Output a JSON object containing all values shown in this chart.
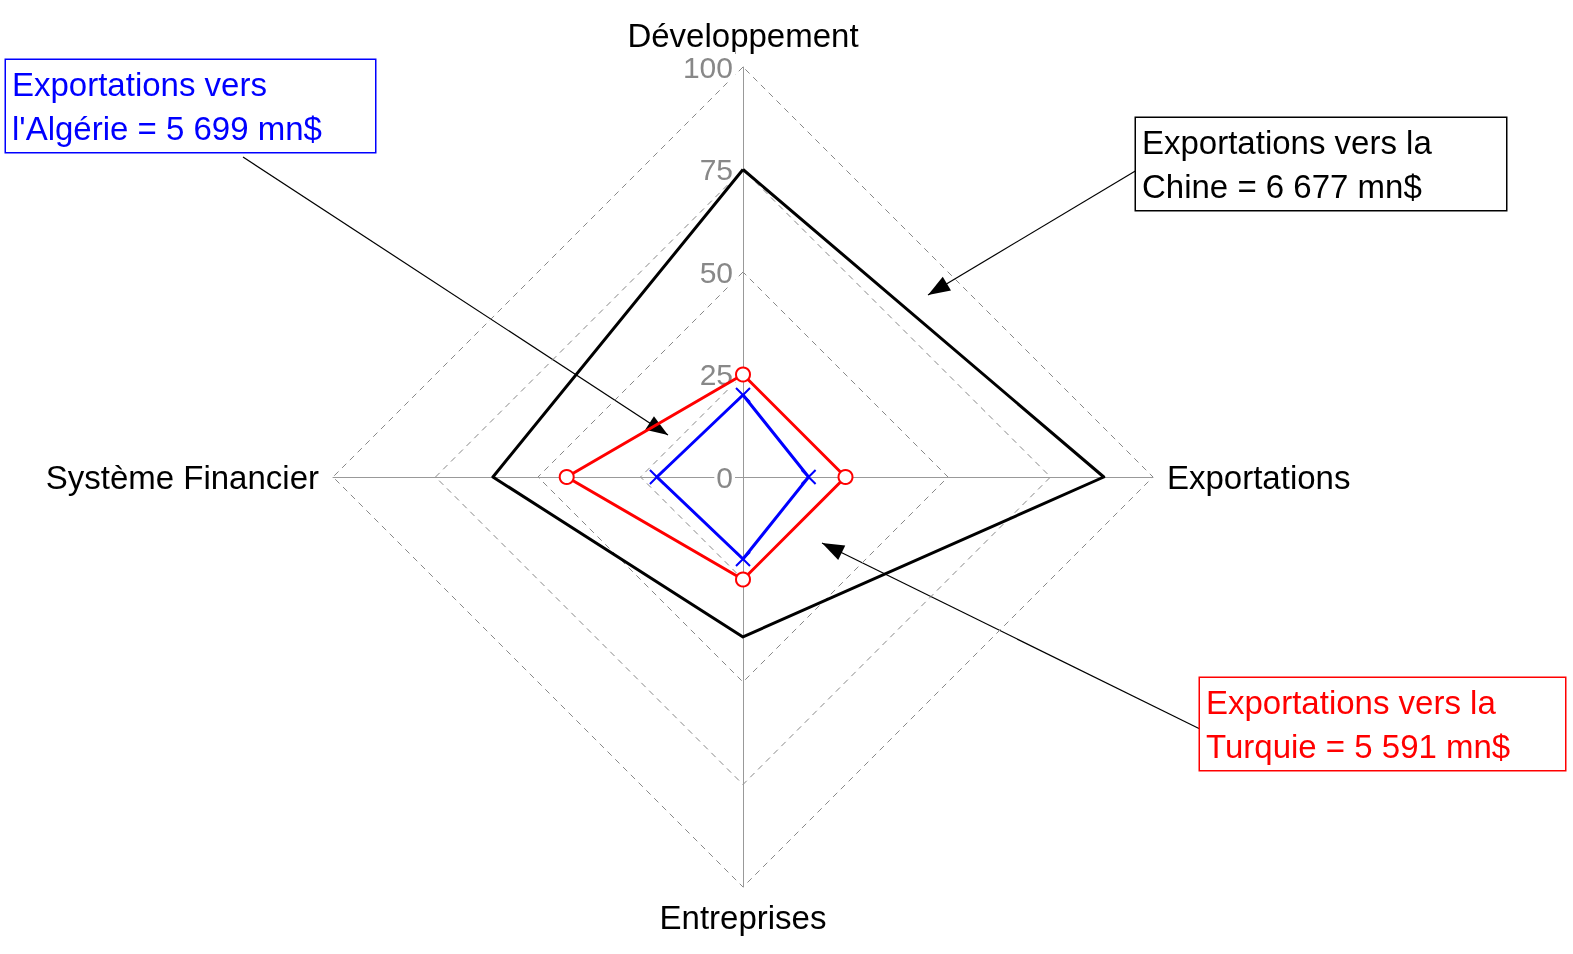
{
  "chart_data": {
    "type": "radar",
    "categories": [
      "Développement",
      "Exportations",
      "Entreprises",
      "Système Financier"
    ],
    "ylim": [
      0,
      100
    ],
    "yticks": [
      0,
      25,
      50,
      75,
      100
    ],
    "grid": true,
    "line_style": "solid",
    "series": [
      {
        "name": "Exportations vers l'Algérie = 5 699 mn$",
        "color": "#0000ff",
        "marker": "cross",
        "values": [
          20,
          16,
          20,
          21
        ]
      },
      {
        "name": "Exportations vers la Chine = 6 677 mn$",
        "color": "#000000",
        "marker": "none",
        "values": [
          75,
          88,
          39,
          61
        ]
      },
      {
        "name": "Exportations vers la Turquie = 5 591 mn$",
        "color": "#ff0000",
        "marker": "circle",
        "values": [
          25,
          25,
          25,
          43
        ]
      }
    ]
  }
}
